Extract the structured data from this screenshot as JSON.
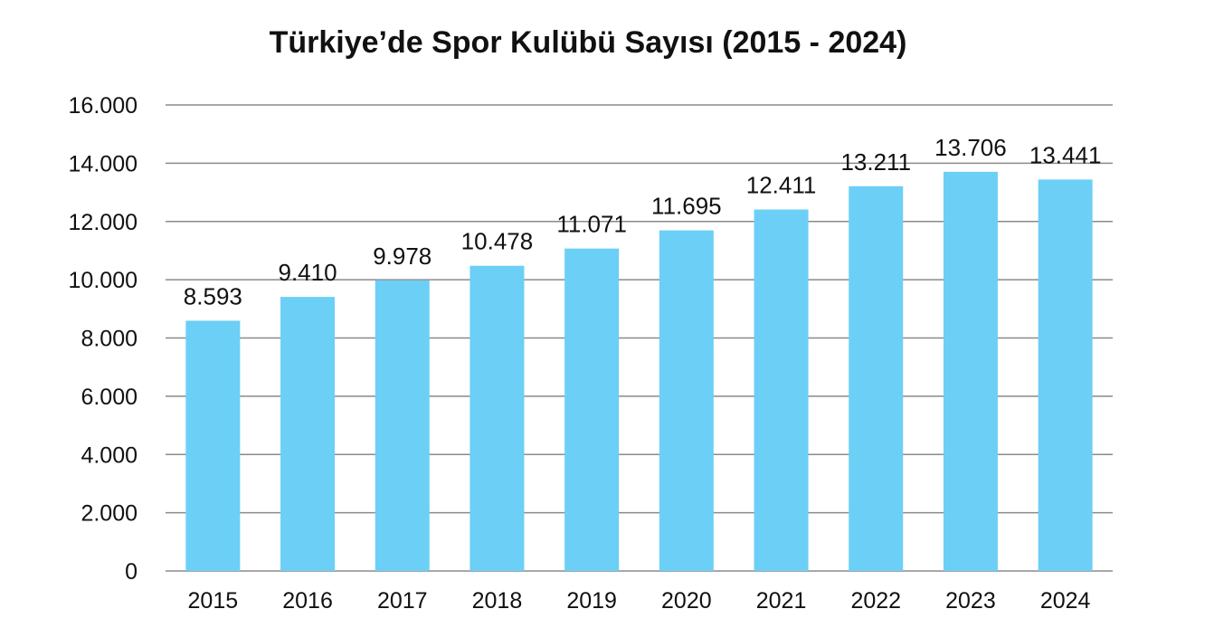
{
  "chart_data": {
    "type": "bar",
    "title": "Türkiye’de Spor Kulübü Sayısı (2015 - 2024)",
    "xlabel": "",
    "ylabel": "",
    "categories": [
      "2015",
      "2016",
      "2017",
      "2018",
      "2019",
      "2020",
      "2021",
      "2022",
      "2023",
      "2024"
    ],
    "values": [
      8593,
      9410,
      9978,
      10478,
      11071,
      11695,
      12411,
      13211,
      13706,
      13441
    ],
    "data_labels": [
      "8.593",
      "9.410",
      "9.978",
      "10.478",
      "11.071",
      "11.695",
      "12.411",
      "13.211",
      "13.706",
      "13.441"
    ],
    "ylim": [
      0,
      16000
    ],
    "y_ticks": [
      0,
      2000,
      4000,
      6000,
      8000,
      10000,
      12000,
      14000,
      16000
    ],
    "y_tick_labels": [
      "0",
      "2.000",
      "4.000",
      "6.000",
      "8.000",
      "10.000",
      "12.000",
      "14.000",
      "16.000"
    ],
    "grid": true,
    "legend": "none",
    "bar_color": "#6ccff6",
    "grid_color": "#8a8a8a"
  }
}
